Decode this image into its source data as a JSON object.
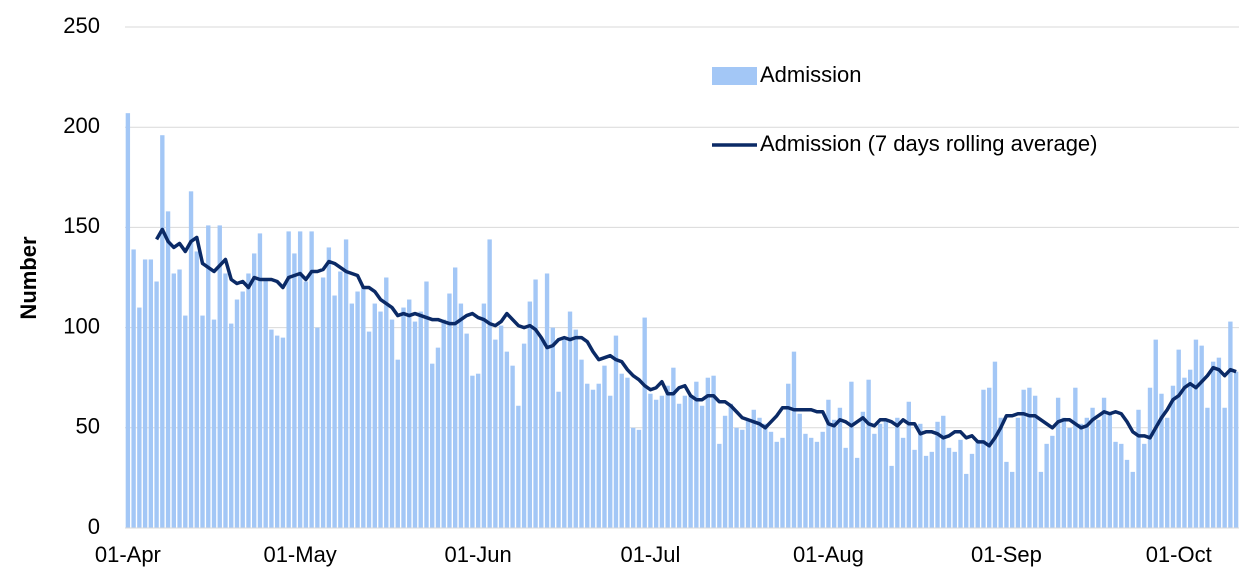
{
  "chart_data": {
    "type": "bar_line",
    "y_label": "Number",
    "categories": [
      "01-Apr",
      null,
      null,
      null,
      null,
      null,
      null,
      null,
      null,
      null,
      null,
      null,
      null,
      null,
      null,
      null,
      null,
      null,
      null,
      null,
      null,
      null,
      null,
      null,
      null,
      null,
      null,
      null,
      null,
      null,
      "01-May",
      null,
      null,
      null,
      null,
      null,
      null,
      null,
      null,
      null,
      null,
      null,
      null,
      null,
      null,
      null,
      null,
      null,
      null,
      null,
      null,
      null,
      null,
      null,
      null,
      null,
      null,
      null,
      null,
      null,
      null,
      "01-Jun",
      null,
      null,
      null,
      null,
      null,
      null,
      null,
      null,
      null,
      null,
      null,
      null,
      null,
      null,
      null,
      null,
      null,
      null,
      null,
      null,
      null,
      null,
      null,
      null,
      null,
      null,
      null,
      null,
      null,
      "01-Jul",
      null,
      null,
      null,
      null,
      null,
      null,
      null,
      null,
      null,
      null,
      null,
      null,
      null,
      null,
      null,
      null,
      null,
      null,
      null,
      null,
      null,
      null,
      null,
      null,
      null,
      null,
      null,
      null,
      null,
      null,
      "01-Aug",
      null,
      null,
      null,
      null,
      null,
      null,
      null,
      null,
      null,
      null,
      null,
      null,
      null,
      null,
      null,
      null,
      null,
      null,
      null,
      null,
      null,
      null,
      null,
      null,
      null,
      null,
      null,
      null,
      null,
      null,
      "01-Sep",
      null,
      null,
      null,
      null,
      null,
      null,
      null,
      null,
      null,
      null,
      null,
      null,
      null,
      null,
      null,
      null,
      null,
      null,
      null,
      null,
      null,
      null,
      null,
      null,
      null,
      null,
      null,
      null,
      null,
      "01-Oct",
      null,
      null,
      null,
      null,
      null,
      null,
      null,
      null,
      null,
      null
    ],
    "series": [
      {
        "name": "Admission",
        "kind": "bar",
        "color": "#a3c7f6",
        "values": [
          207,
          139,
          110,
          134,
          134,
          123,
          196,
          158,
          127,
          129,
          106,
          168,
          138,
          106,
          151,
          104,
          151,
          127,
          102,
          114,
          118,
          127,
          137,
          147,
          124,
          99,
          96,
          95,
          148,
          137,
          148,
          123,
          148,
          100,
          125,
          140,
          116,
          128,
          144,
          112,
          118,
          120,
          98,
          112,
          108,
          125,
          104,
          84,
          110,
          114,
          103,
          108,
          123,
          82,
          90,
          104,
          117,
          130,
          112,
          97,
          76,
          77,
          112,
          144,
          94,
          101,
          88,
          81,
          61,
          92,
          113,
          124,
          95,
          127,
          100,
          68,
          94,
          108,
          99,
          84,
          72,
          69,
          72,
          81,
          66,
          96,
          77,
          75,
          50,
          49,
          105,
          67,
          64,
          66,
          71,
          80,
          62,
          66,
          66,
          73,
          61,
          75,
          76,
          42,
          56,
          62,
          50,
          49,
          54,
          59,
          55,
          52,
          48,
          43,
          45,
          72,
          88,
          57,
          47,
          45,
          43,
          48,
          64,
          54,
          60,
          40,
          73,
          35,
          58,
          74,
          47,
          52,
          54,
          31,
          55,
          45,
          63,
          39,
          52,
          36,
          38,
          53,
          56,
          40,
          38,
          44,
          27,
          37,
          44,
          69,
          70,
          83,
          55,
          33,
          28,
          55,
          69,
          70,
          66,
          28,
          42,
          46,
          65,
          55,
          50,
          70,
          52,
          55,
          60,
          54,
          65,
          57,
          43,
          42,
          34,
          28,
          59,
          42,
          70,
          94,
          67,
          55,
          71,
          89,
          75,
          79,
          94,
          91,
          60,
          83,
          85,
          60,
          103,
          78
        ]
      },
      {
        "name": "Admission (7 days rolling average)",
        "kind": "line",
        "color": "#0b2a66",
        "values": [
          null,
          null,
          null,
          null,
          null,
          144,
          149,
          143,
          140,
          142,
          138,
          143,
          145,
          132,
          130,
          128,
          131,
          134,
          124,
          122,
          123,
          120,
          125,
          124,
          124,
          124,
          123,
          120,
          125,
          126,
          127,
          124,
          128,
          128,
          129,
          133,
          132,
          130,
          128,
          127,
          126,
          120,
          120,
          118,
          114,
          112,
          110,
          106,
          107,
          106,
          107,
          106,
          105,
          104,
          104,
          103,
          102,
          102,
          104,
          106,
          107,
          105,
          104,
          102,
          101,
          103,
          107,
          104,
          101,
          100,
          101,
          99,
          95,
          90,
          91,
          94,
          95,
          94,
          95,
          95,
          93,
          88,
          84,
          85,
          86,
          84,
          83,
          79,
          76,
          74,
          71,
          69,
          70,
          73,
          67,
          67,
          70,
          71,
          66,
          64,
          64,
          66,
          66,
          63,
          63,
          61,
          58,
          55,
          54,
          53,
          52,
          50,
          53,
          56,
          60,
          60,
          59,
          59,
          59,
          59,
          58,
          58,
          52,
          51,
          54,
          53,
          51,
          53,
          55,
          52,
          51,
          54,
          54,
          53,
          51,
          54,
          52,
          52,
          47,
          48,
          48,
          47,
          45,
          46,
          48,
          48,
          45,
          46,
          43,
          43,
          41,
          45,
          50,
          56,
          56,
          57,
          57,
          56,
          56,
          54,
          52,
          50,
          53,
          54,
          54,
          52,
          50,
          51,
          54,
          56,
          58,
          57,
          58,
          57,
          53,
          48,
          46,
          46,
          45,
          50,
          55,
          59,
          64,
          66,
          70,
          72,
          70,
          73,
          76,
          80,
          79,
          76,
          79,
          78
        ]
      }
    ],
    "ylim": [
      0,
      250
    ],
    "yticks": [
      0,
      50,
      100,
      150,
      200,
      250
    ],
    "grid": true,
    "legend": "upper right"
  }
}
